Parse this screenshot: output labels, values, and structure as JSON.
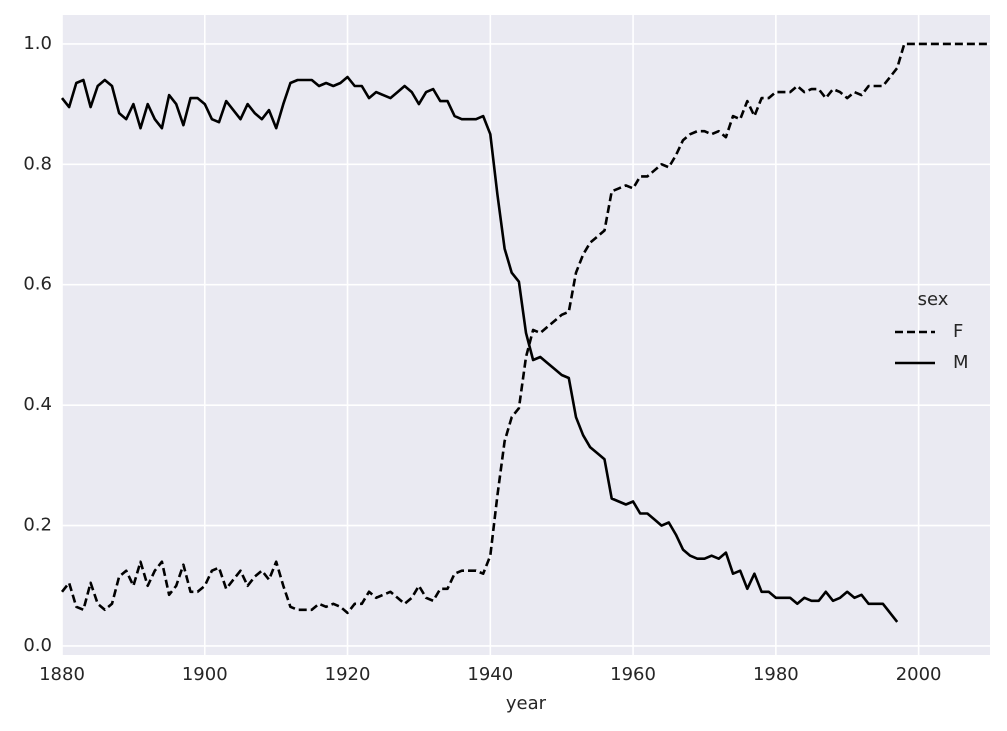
{
  "chart_data": {
    "type": "line",
    "x_label": "year",
    "legend_title": "sex",
    "legend": "center right",
    "grid": true,
    "background": "#eaeaf2",
    "xlim": [
      1880,
      2010
    ],
    "xticks": [
      1880,
      1900,
      1920,
      1940,
      1960,
      1980,
      2000
    ],
    "ylim": [
      -0.015,
      1.048
    ],
    "yticks": [
      {
        "value": 0,
        "label": "0.0"
      },
      0.2,
      0.4,
      0.6,
      0.8,
      {
        "value": 1,
        "label": "1.0"
      }
    ],
    "x": [
      1880,
      1881,
      1882,
      1883,
      1884,
      1885,
      1886,
      1887,
      1888,
      1889,
      1890,
      1891,
      1892,
      1893,
      1894,
      1895,
      1896,
      1897,
      1898,
      1899,
      1900,
      1901,
      1902,
      1903,
      1904,
      1905,
      1906,
      1907,
      1908,
      1909,
      1910,
      1911,
      1912,
      1913,
      1914,
      1915,
      1916,
      1917,
      1918,
      1919,
      1920,
      1921,
      1922,
      1923,
      1924,
      1925,
      1926,
      1927,
      1928,
      1929,
      1930,
      1931,
      1932,
      1933,
      1934,
      1935,
      1936,
      1937,
      1938,
      1939,
      1940,
      1941,
      1942,
      1943,
      1944,
      1945,
      1946,
      1947,
      1948,
      1949,
      1950,
      1951,
      1952,
      1953,
      1954,
      1955,
      1956,
      1957,
      1958,
      1959,
      1960,
      1961,
      1962,
      1963,
      1964,
      1965,
      1966,
      1967,
      1968,
      1969,
      1970,
      1971,
      1972,
      1973,
      1974,
      1975,
      1976,
      1977,
      1978,
      1979,
      1980,
      1981,
      1982,
      1983,
      1984,
      1985,
      1986,
      1987,
      1988,
      1989,
      1990,
      1991,
      1992,
      1993,
      1994,
      1995,
      1996,
      1997,
      1998,
      1999,
      2000,
      2001,
      2002,
      2003,
      2004,
      2005,
      2006,
      2007,
      2008,
      2009,
      2010
    ],
    "series": [
      {
        "name": "F",
        "color": "#000000",
        "linestyle": "dashed",
        "values": [
          0.09,
          0.105,
          0.065,
          0.06,
          0.105,
          0.07,
          0.06,
          0.07,
          0.115,
          0.125,
          0.1,
          0.14,
          0.1,
          0.125,
          0.14,
          0.085,
          0.1,
          0.135,
          0.09,
          0.09,
          0.1,
          0.125,
          0.13,
          0.095,
          0.11,
          0.125,
          0.1,
          0.115,
          0.125,
          0.11,
          0.14,
          0.1,
          0.065,
          0.06,
          0.06,
          0.06,
          0.07,
          0.065,
          0.07,
          0.065,
          0.055,
          0.07,
          0.07,
          0.09,
          0.08,
          0.085,
          0.09,
          0.08,
          0.07,
          0.08,
          0.1,
          0.08,
          0.075,
          0.095,
          0.095,
          0.12,
          0.125,
          0.125,
          0.125,
          0.12,
          0.15,
          0.25,
          0.34,
          0.38,
          0.395,
          0.48,
          0.525,
          0.52,
          0.53,
          0.54,
          0.55,
          0.555,
          0.62,
          0.65,
          0.67,
          0.68,
          0.69,
          0.755,
          0.76,
          0.765,
          0.76,
          0.78,
          0.78,
          0.79,
          0.8,
          0.795,
          0.815,
          0.84,
          0.85,
          0.855,
          0.855,
          0.85,
          0.855,
          0.845,
          0.88,
          0.875,
          0.905,
          0.88,
          0.91,
          0.91,
          0.92,
          0.92,
          0.92,
          0.93,
          0.92,
          0.925,
          0.925,
          0.91,
          0.925,
          0.92,
          0.91,
          0.92,
          0.915,
          0.93,
          0.93,
          0.93,
          0.945,
          0.96,
          1,
          1,
          1,
          1,
          1,
          1,
          1,
          1,
          1,
          1,
          1,
          1,
          1
        ]
      },
      {
        "name": "M",
        "color": "#000000",
        "linestyle": "solid",
        "values": [
          0.91,
          0.895,
          0.935,
          0.94,
          0.895,
          0.93,
          0.94,
          0.93,
          0.885,
          0.875,
          0.9,
          0.86,
          0.9,
          0.875,
          0.86,
          0.915,
          0.9,
          0.865,
          0.91,
          0.91,
          0.9,
          0.875,
          0.87,
          0.905,
          0.89,
          0.875,
          0.9,
          0.885,
          0.875,
          0.89,
          0.86,
          0.9,
          0.935,
          0.94,
          0.94,
          0.94,
          0.93,
          0.935,
          0.93,
          0.935,
          0.945,
          0.93,
          0.93,
          0.91,
          0.92,
          0.915,
          0.91,
          0.92,
          0.93,
          0.92,
          0.9,
          0.92,
          0.925,
          0.905,
          0.905,
          0.88,
          0.875,
          0.875,
          0.875,
          0.88,
          0.85,
          0.75,
          0.66,
          0.62,
          0.605,
          0.52,
          0.475,
          0.48,
          0.47,
          0.46,
          0.45,
          0.445,
          0.38,
          0.35,
          0.33,
          0.32,
          0.31,
          0.245,
          0.24,
          0.235,
          0.24,
          0.22,
          0.22,
          0.21,
          0.2,
          0.205,
          0.185,
          0.16,
          0.15,
          0.145,
          0.145,
          0.15,
          0.145,
          0.155,
          0.12,
          0.125,
          0.095,
          0.12,
          0.09,
          0.09,
          0.08,
          0.08,
          0.08,
          0.07,
          0.08,
          0.075,
          0.075,
          0.09,
          0.075,
          0.08,
          0.09,
          0.08,
          0.085,
          0.07,
          0.07,
          0.07,
          0.055,
          0.04,
          null,
          null,
          null,
          null,
          null,
          null,
          null,
          null,
          null,
          null,
          null,
          null,
          null
        ]
      }
    ]
  }
}
